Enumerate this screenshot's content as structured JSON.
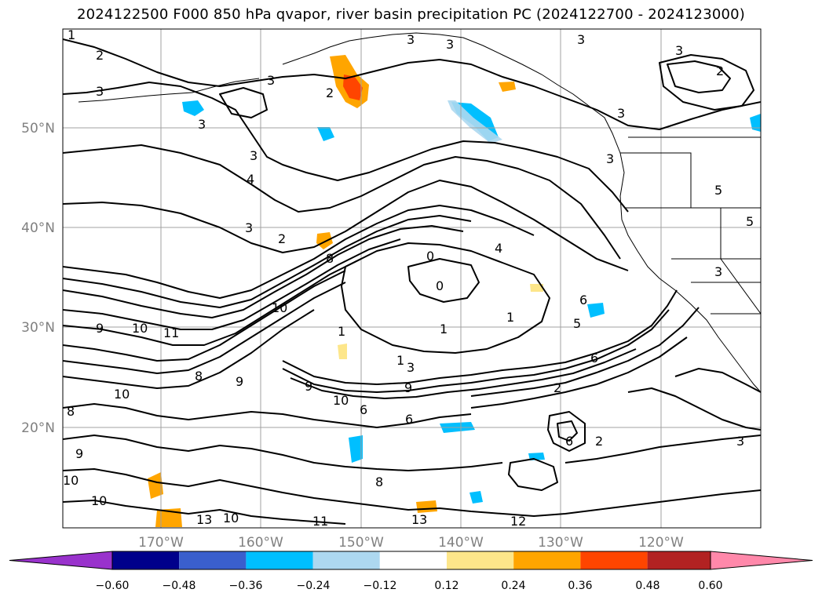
{
  "title": "2024122500 F000 850 hPa qvapor, river basin precipitation PC (2024122700 - 2024123000)",
  "lat_labels": [
    "50°N",
    "40°N",
    "30°N",
    "20°N"
  ],
  "lon_labels": [
    "170°W",
    "160°W",
    "150°W",
    "140°W",
    "130°W",
    "120°W"
  ],
  "colorbar": {
    "ticks": [
      "−0.60",
      "−0.48",
      "−0.36",
      "−0.24",
      "−0.12",
      "0.12",
      "0.24",
      "0.36",
      "0.48",
      "0.60"
    ],
    "colors": [
      "#9932cc",
      "#00008b",
      "#3a5fcd",
      "#00bfff",
      "#add8f0",
      "#ffffff",
      "#fde68a",
      "#ffa500",
      "#ff4500",
      "#b22222",
      "#ff88aa"
    ]
  },
  "contour_labels": [
    "1",
    "2",
    "3",
    "3",
    "3",
    "3",
    "3",
    "3",
    "2",
    "3",
    "3",
    "2",
    "3",
    "5",
    "5",
    "3",
    "3",
    "3",
    "4",
    "2",
    "8",
    "0",
    "0",
    "1",
    "1",
    "1",
    "1",
    "3",
    "5",
    "9",
    "10",
    "11",
    "9",
    "8",
    "9",
    "10",
    "8",
    "9",
    "10",
    "13",
    "6",
    "4",
    "2",
    "6",
    "6",
    "2",
    "3",
    "10",
    "11",
    "10",
    "10",
    "9",
    "13",
    "12",
    "10",
    "8",
    "6",
    "6"
  ],
  "chart_data": {
    "type": "map",
    "title": "2024122500 F000 850 hPa qvapor, river basin precipitation PC (2024122700 - 2024123000)",
    "lat_ticks": [
      50,
      40,
      30,
      20
    ],
    "lon_ticks": [
      -170,
      -160,
      -150,
      -140,
      -130,
      -120
    ],
    "colorbar_levels": [
      -0.6,
      -0.48,
      -0.36,
      -0.24,
      -0.12,
      0.12,
      0.24,
      0.36,
      0.48,
      0.6
    ],
    "grid": true
  }
}
